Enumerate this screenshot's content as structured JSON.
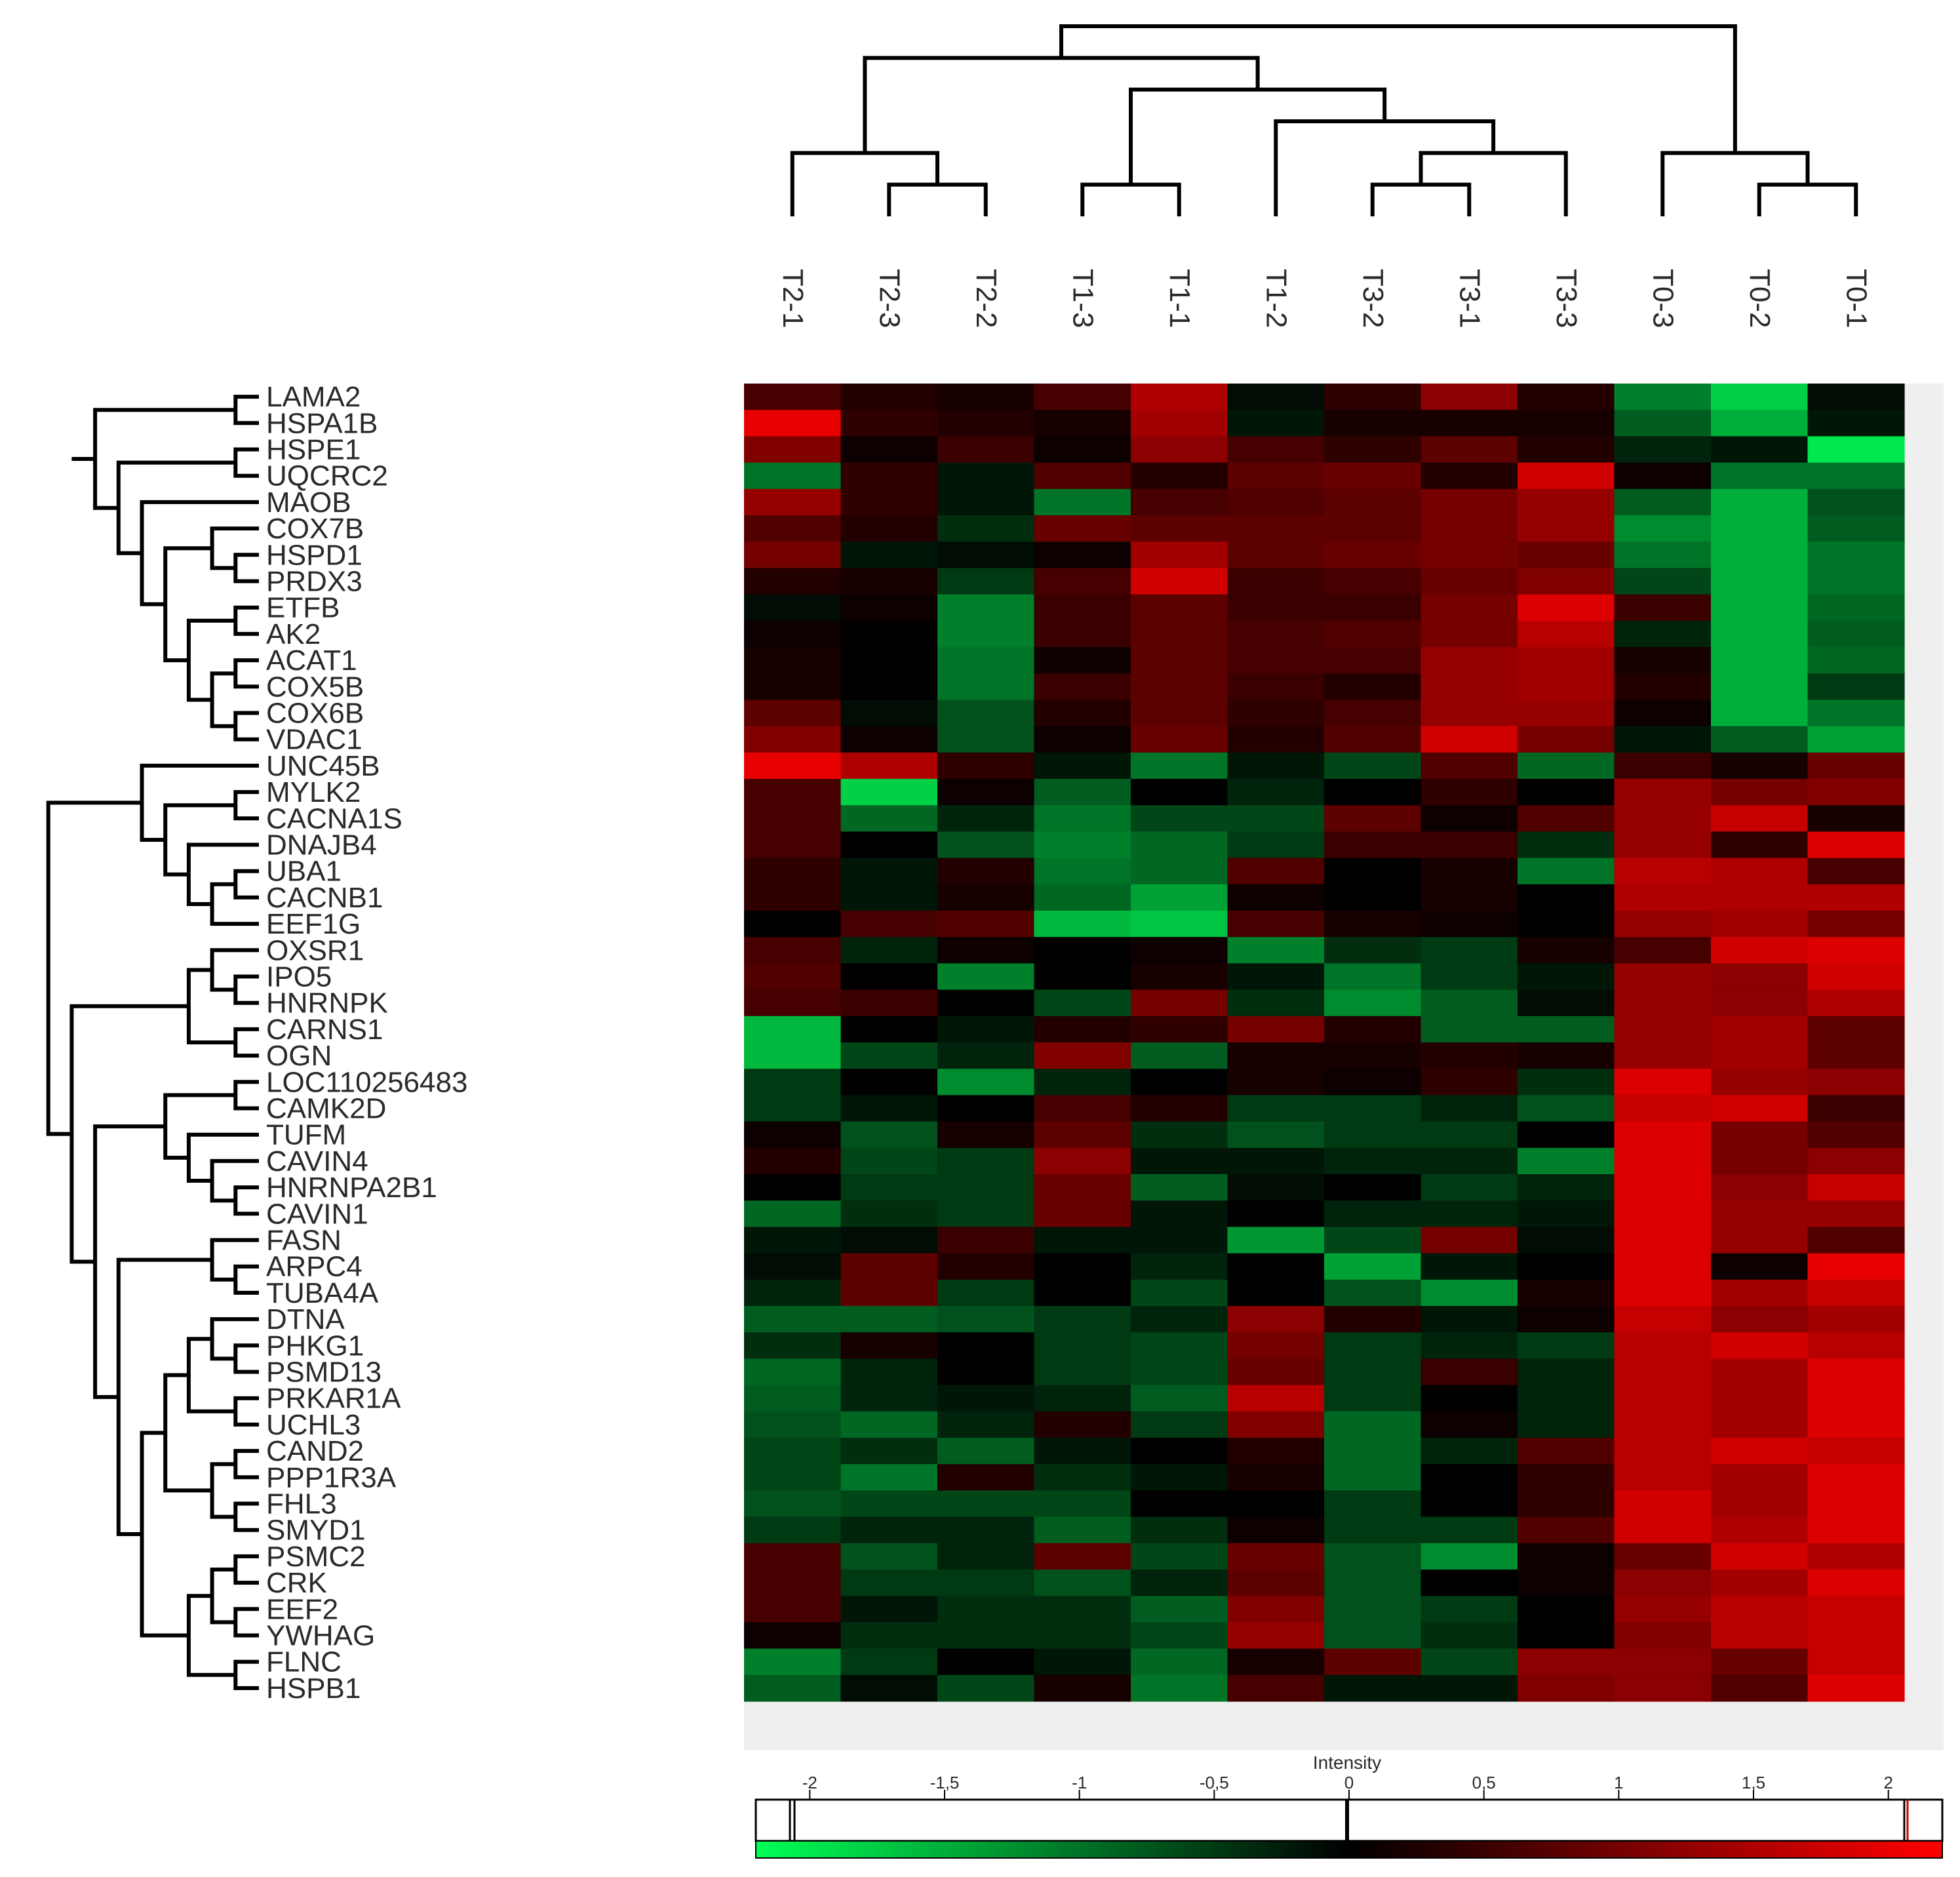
{
  "chart_data": {
    "type": "heatmap",
    "colormap": {
      "low": "#00ff55",
      "mid": "#000000",
      "high": "#ff0000"
    },
    "columns": [
      "T2-1",
      "T2-3",
      "T2-2",
      "T1-3",
      "T1-1",
      "T1-2",
      "T3-2",
      "T3-1",
      "T3-3",
      "T0-3",
      "T0-2",
      "T0-1"
    ],
    "rows": [
      "LAMA2",
      "HSPA1B",
      "HSPE1",
      "UQCRC2",
      "MAOB",
      "COX7B",
      "HSPD1",
      "PRDX3",
      "ETFB",
      "AK2",
      "ACAT1",
      "COX5B",
      "COX6B",
      "VDAC1",
      "UNC45B",
      "MYLK2",
      "CACNA1S",
      "DNAJB4",
      "UBA1",
      "CACNB1",
      "EEF1G",
      "OXSR1",
      "IPO5",
      "HNRNPK",
      "CARNS1",
      "OGN",
      "LOC110256483",
      "CAMK2D",
      "TUFM",
      "CAVIN4",
      "HNRNPA2B1",
      "CAVIN1",
      "FASN",
      "ARPC4",
      "TUBA4A",
      "DTNA",
      "PHKG1",
      "PSMD13",
      "PRKAR1A",
      "UCHL3",
      "CAND2",
      "PPP1R3A",
      "FHL3",
      "SMYD1",
      "PSMC2",
      "CRK",
      "EEF2",
      "YWHAG",
      "FLNC",
      "HSPB1"
    ],
    "values": [
      [
        0.6,
        0.3,
        0.2,
        0.6,
        1.5,
        -0.1,
        0.4,
        1.2,
        0.3,
        -1.1,
        -1.8,
        -0.1
      ],
      [
        2.0,
        0.4,
        0.3,
        0.2,
        1.4,
        -0.2,
        0.2,
        0.2,
        0.2,
        -0.8,
        -1.5,
        -0.2
      ],
      [
        1.1,
        0.1,
        0.5,
        0.1,
        1.2,
        0.6,
        0.4,
        0.8,
        0.3,
        -0.3,
        -0.2,
        -2.0
      ],
      [
        -1.0,
        0.4,
        -0.2,
        0.7,
        0.3,
        0.8,
        0.9,
        0.3,
        1.8,
        0.1,
        -1.0,
        -1.0
      ],
      [
        1.3,
        0.4,
        -0.2,
        -1.0,
        0.6,
        0.7,
        0.8,
        1.0,
        1.3,
        -0.8,
        -1.5,
        -0.7
      ],
      [
        0.7,
        0.3,
        -0.4,
        0.9,
        0.8,
        0.8,
        0.8,
        1.0,
        1.3,
        -1.2,
        -1.5,
        -0.8
      ],
      [
        1.0,
        -0.2,
        -0.1,
        0.1,
        1.4,
        0.8,
        0.9,
        1.0,
        0.9,
        -1.0,
        -1.5,
        -1.0
      ],
      [
        0.3,
        0.2,
        -0.5,
        0.6,
        1.8,
        0.5,
        0.6,
        0.9,
        1.1,
        -0.6,
        -1.5,
        -1.0
      ],
      [
        -0.1,
        0.1,
        -1.1,
        0.5,
        0.8,
        0.5,
        0.5,
        1.0,
        1.9,
        0.5,
        -1.5,
        -0.9
      ],
      [
        0.1,
        0.0,
        -1.1,
        0.5,
        0.8,
        0.6,
        0.7,
        1.0,
        1.6,
        -0.3,
        -1.5,
        -0.8
      ],
      [
        0.2,
        0.0,
        -1.0,
        0.1,
        0.8,
        0.6,
        0.6,
        1.3,
        1.4,
        0.2,
        -1.5,
        -0.9
      ],
      [
        0.2,
        0.0,
        -1.0,
        0.5,
        0.8,
        0.5,
        0.3,
        1.3,
        1.4,
        0.3,
        -1.5,
        -0.5
      ],
      [
        0.8,
        -0.1,
        -0.7,
        0.3,
        0.8,
        0.4,
        0.6,
        1.3,
        1.3,
        0.1,
        -1.5,
        -1.0
      ],
      [
        1.1,
        0.1,
        -0.7,
        0.1,
        0.9,
        0.3,
        0.7,
        1.8,
        1.0,
        -0.2,
        -0.8,
        -1.4
      ],
      [
        2.0,
        1.5,
        0.4,
        -0.2,
        -1.0,
        -0.2,
        -0.6,
        0.7,
        -0.9,
        0.5,
        0.2,
        0.9
      ],
      [
        0.6,
        -1.8,
        0.1,
        -0.8,
        0.0,
        -0.3,
        0.0,
        0.4,
        0.0,
        1.3,
        1.0,
        1.1
      ],
      [
        0.6,
        -0.9,
        -0.3,
        -1.0,
        -0.6,
        -0.6,
        0.8,
        0.1,
        0.7,
        1.3,
        1.7,
        0.2
      ],
      [
        0.6,
        0.0,
        -0.7,
        -1.1,
        -0.9,
        -0.5,
        0.5,
        0.5,
        -0.4,
        1.3,
        0.4,
        1.9
      ],
      [
        0.4,
        -0.2,
        0.3,
        -1.0,
        -0.9,
        0.7,
        0.0,
        0.2,
        -1.0,
        1.6,
        1.5,
        0.6
      ],
      [
        0.4,
        -0.2,
        0.2,
        -0.9,
        -1.4,
        0.1,
        0.0,
        0.2,
        0.0,
        1.5,
        1.5,
        1.5
      ],
      [
        0.0,
        0.6,
        0.7,
        -1.6,
        -1.7,
        0.6,
        0.2,
        0.1,
        0.0,
        1.3,
        1.4,
        1.0
      ],
      [
        0.6,
        -0.3,
        0.1,
        0.0,
        0.1,
        -1.1,
        -0.4,
        -0.5,
        0.2,
        0.6,
        1.8,
        1.9
      ],
      [
        0.7,
        0.0,
        -1.1,
        0.0,
        0.2,
        -0.2,
        -1.0,
        -0.5,
        -0.2,
        1.3,
        1.2,
        1.8
      ],
      [
        0.6,
        0.5,
        0.0,
        -0.6,
        1.0,
        -0.4,
        -1.2,
        -0.8,
        -0.1,
        1.3,
        1.2,
        1.5
      ],
      [
        -1.6,
        0.0,
        -0.2,
        0.3,
        0.4,
        1.0,
        0.3,
        -0.8,
        -0.8,
        1.3,
        1.4,
        0.8
      ],
      [
        -1.6,
        -0.6,
        -0.3,
        1.1,
        -0.8,
        0.2,
        0.2,
        0.3,
        0.2,
        1.3,
        1.4,
        0.8
      ],
      [
        -0.5,
        0.0,
        -1.2,
        -0.3,
        0.0,
        0.2,
        0.1,
        0.4,
        -0.4,
        1.9,
        1.3,
        1.2
      ],
      [
        -0.5,
        -0.2,
        0.0,
        0.6,
        0.3,
        -0.5,
        -0.5,
        -0.3,
        -0.7,
        1.7,
        1.8,
        0.5
      ],
      [
        0.1,
        -0.7,
        0.2,
        0.8,
        -0.4,
        -0.7,
        -0.5,
        -0.5,
        0.0,
        1.9,
        1.0,
        0.7
      ],
      [
        0.3,
        -0.6,
        -0.5,
        1.2,
        -0.2,
        -0.2,
        -0.3,
        -0.3,
        -1.1,
        1.9,
        1.0,
        1.2
      ],
      [
        0.0,
        -0.5,
        -0.5,
        0.9,
        -0.8,
        -0.1,
        0.0,
        -0.5,
        -0.3,
        1.9,
        1.2,
        1.7
      ],
      [
        -0.9,
        -0.4,
        -0.5,
        0.9,
        -0.2,
        0.0,
        -0.3,
        -0.3,
        -0.2,
        1.9,
        1.3,
        1.3
      ],
      [
        -0.2,
        -0.1,
        0.5,
        -0.2,
        -0.2,
        -1.3,
        -0.6,
        1.0,
        -0.1,
        1.9,
        1.3,
        0.7
      ],
      [
        -0.1,
        0.8,
        0.3,
        0.0,
        -0.3,
        0.0,
        -1.4,
        -0.2,
        0.0,
        1.9,
        0.1,
        2.0
      ],
      [
        -0.3,
        0.8,
        -0.5,
        0.0,
        -0.6,
        0.0,
        -0.7,
        -1.2,
        0.2,
        1.9,
        1.4,
        1.7
      ],
      [
        -0.8,
        -0.8,
        -0.7,
        -0.5,
        -0.3,
        1.2,
        0.3,
        -0.2,
        0.1,
        1.7,
        1.2,
        1.4
      ],
      [
        -0.4,
        0.2,
        0.0,
        -0.5,
        -0.6,
        1.0,
        -0.5,
        -0.3,
        -0.5,
        1.6,
        1.8,
        1.6
      ],
      [
        -0.9,
        -0.3,
        0.0,
        -0.5,
        -0.6,
        0.9,
        -0.5,
        0.5,
        -0.3,
        1.6,
        1.4,
        1.9
      ],
      [
        -0.8,
        -0.3,
        -0.2,
        -0.3,
        -0.8,
        1.6,
        -0.5,
        0.0,
        -0.3,
        1.6,
        1.4,
        1.9
      ],
      [
        -0.7,
        -0.9,
        -0.3,
        0.3,
        -0.5,
        1.1,
        -0.9,
        0.1,
        -0.3,
        1.6,
        1.4,
        1.9
      ],
      [
        -0.6,
        -0.4,
        -0.8,
        -0.2,
        0.0,
        0.3,
        -0.9,
        -0.3,
        0.7,
        1.6,
        1.8,
        1.7
      ],
      [
        -0.6,
        -1.0,
        0.3,
        -0.4,
        -0.2,
        0.2,
        -0.9,
        0.0,
        0.4,
        1.6,
        1.4,
        1.9
      ],
      [
        -0.7,
        -0.6,
        -0.6,
        -0.6,
        0.0,
        0.0,
        -0.5,
        0.0,
        0.4,
        1.8,
        1.4,
        1.9
      ],
      [
        -0.5,
        -0.3,
        -0.3,
        -0.8,
        -0.4,
        0.1,
        -0.5,
        -0.5,
        0.7,
        1.8,
        1.5,
        1.9
      ],
      [
        0.6,
        -0.7,
        -0.3,
        0.8,
        -0.6,
        0.9,
        -0.7,
        -1.2,
        0.1,
        0.9,
        1.8,
        1.5
      ],
      [
        0.6,
        -0.5,
        -0.5,
        -0.7,
        -0.3,
        0.8,
        -0.7,
        0.0,
        0.1,
        1.2,
        1.4,
        1.9
      ],
      [
        0.6,
        -0.2,
        -0.4,
        -0.4,
        -0.8,
        1.1,
        -0.7,
        -0.5,
        0.0,
        1.3,
        1.6,
        1.7
      ],
      [
        0.1,
        -0.4,
        -0.4,
        -0.4,
        -0.6,
        1.3,
        -0.7,
        -0.4,
        0.0,
        1.1,
        1.6,
        1.7
      ],
      [
        -1.1,
        -0.5,
        0.0,
        -0.2,
        -0.9,
        0.2,
        0.8,
        -0.6,
        1.2,
        1.2,
        0.9,
        1.7
      ],
      [
        -0.8,
        -0.1,
        -0.6,
        0.2,
        -1.0,
        0.6,
        -0.2,
        -0.2,
        1.1,
        1.2,
        0.7,
        1.9
      ]
    ],
    "colorbar": {
      "title": "Intensity",
      "ticks": [
        "-2",
        "-1,5",
        "-1",
        "-0,5",
        "0",
        "0,5",
        "1",
        "1,5",
        "2"
      ],
      "min": -2.2,
      "max": 2.2
    }
  }
}
